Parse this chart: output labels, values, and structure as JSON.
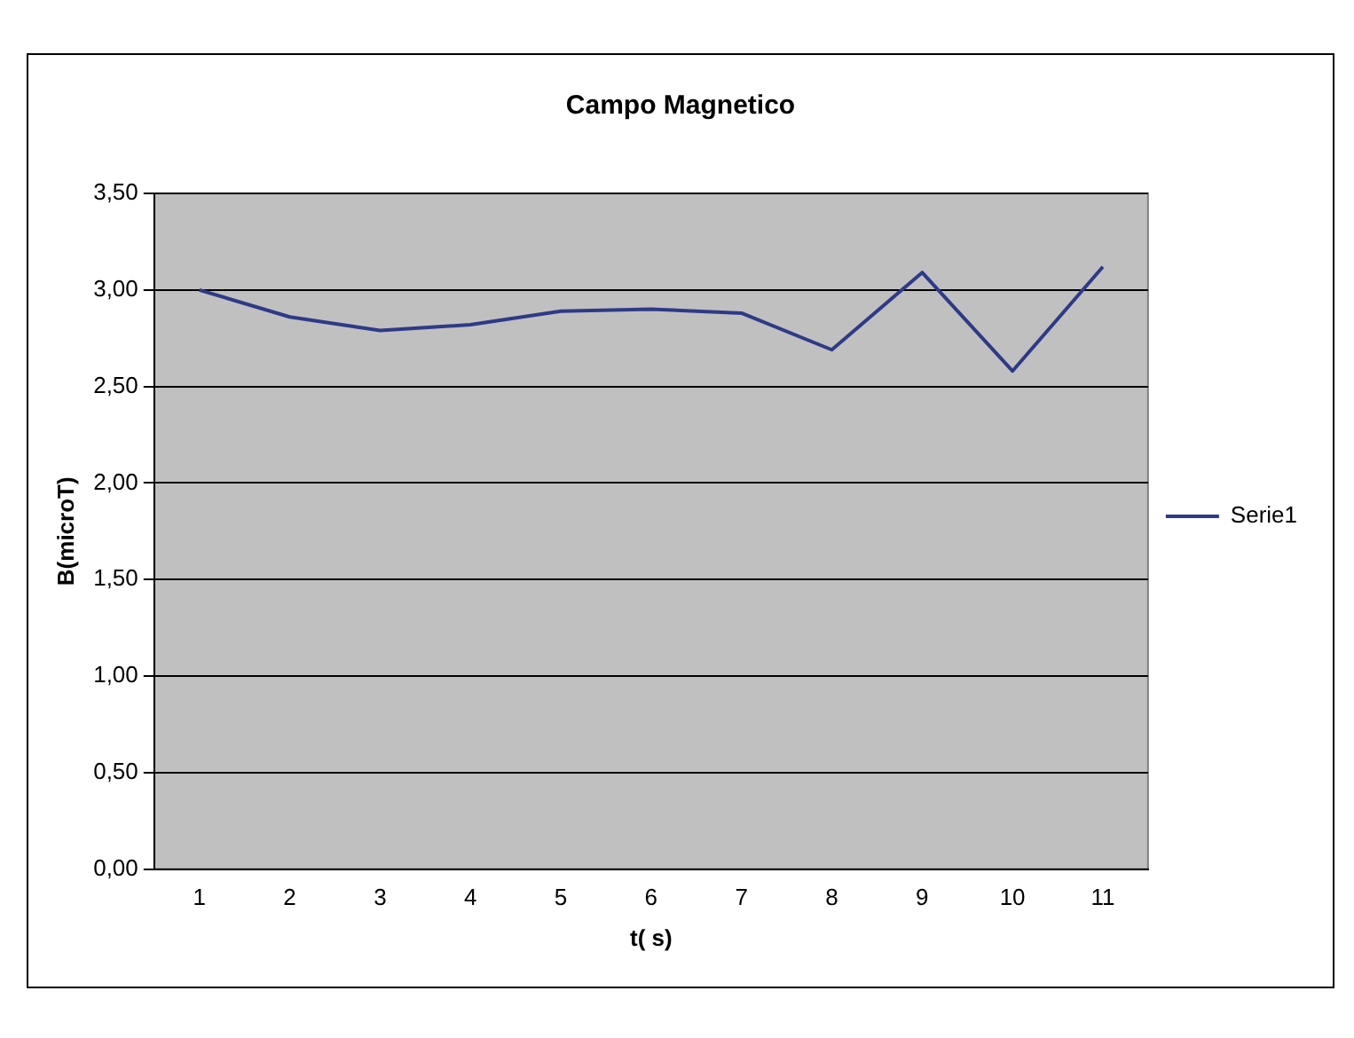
{
  "chart_data": {
    "type": "line",
    "title": "Campo Magnetico",
    "xlabel": "t( s)",
    "ylabel": "B(microT)",
    "categories": [
      "1",
      "2",
      "3",
      "4",
      "5",
      "6",
      "7",
      "8",
      "9",
      "10",
      "11"
    ],
    "series": [
      {
        "name": "Serie1",
        "color": "#2e3a87",
        "values": [
          3.0,
          2.86,
          2.79,
          2.82,
          2.89,
          2.9,
          2.88,
          2.69,
          3.09,
          2.58,
          3.12
        ]
      }
    ],
    "ylim": [
      0,
      3.5
    ],
    "yticks": [
      {
        "value": 0,
        "label": "0,00"
      },
      {
        "value": 0.5,
        "label": "0,50"
      },
      {
        "value": 1,
        "label": "1,00"
      },
      {
        "value": 1.5,
        "label": "1,50"
      },
      {
        "value": 2,
        "label": "2,00"
      },
      {
        "value": 2.5,
        "label": "2,50"
      },
      {
        "value": 3,
        "label": "3,00"
      },
      {
        "value": 3.5,
        "label": "3,50"
      }
    ],
    "grid": "y",
    "legend": "right",
    "marker": "none",
    "line_style": "solid"
  }
}
